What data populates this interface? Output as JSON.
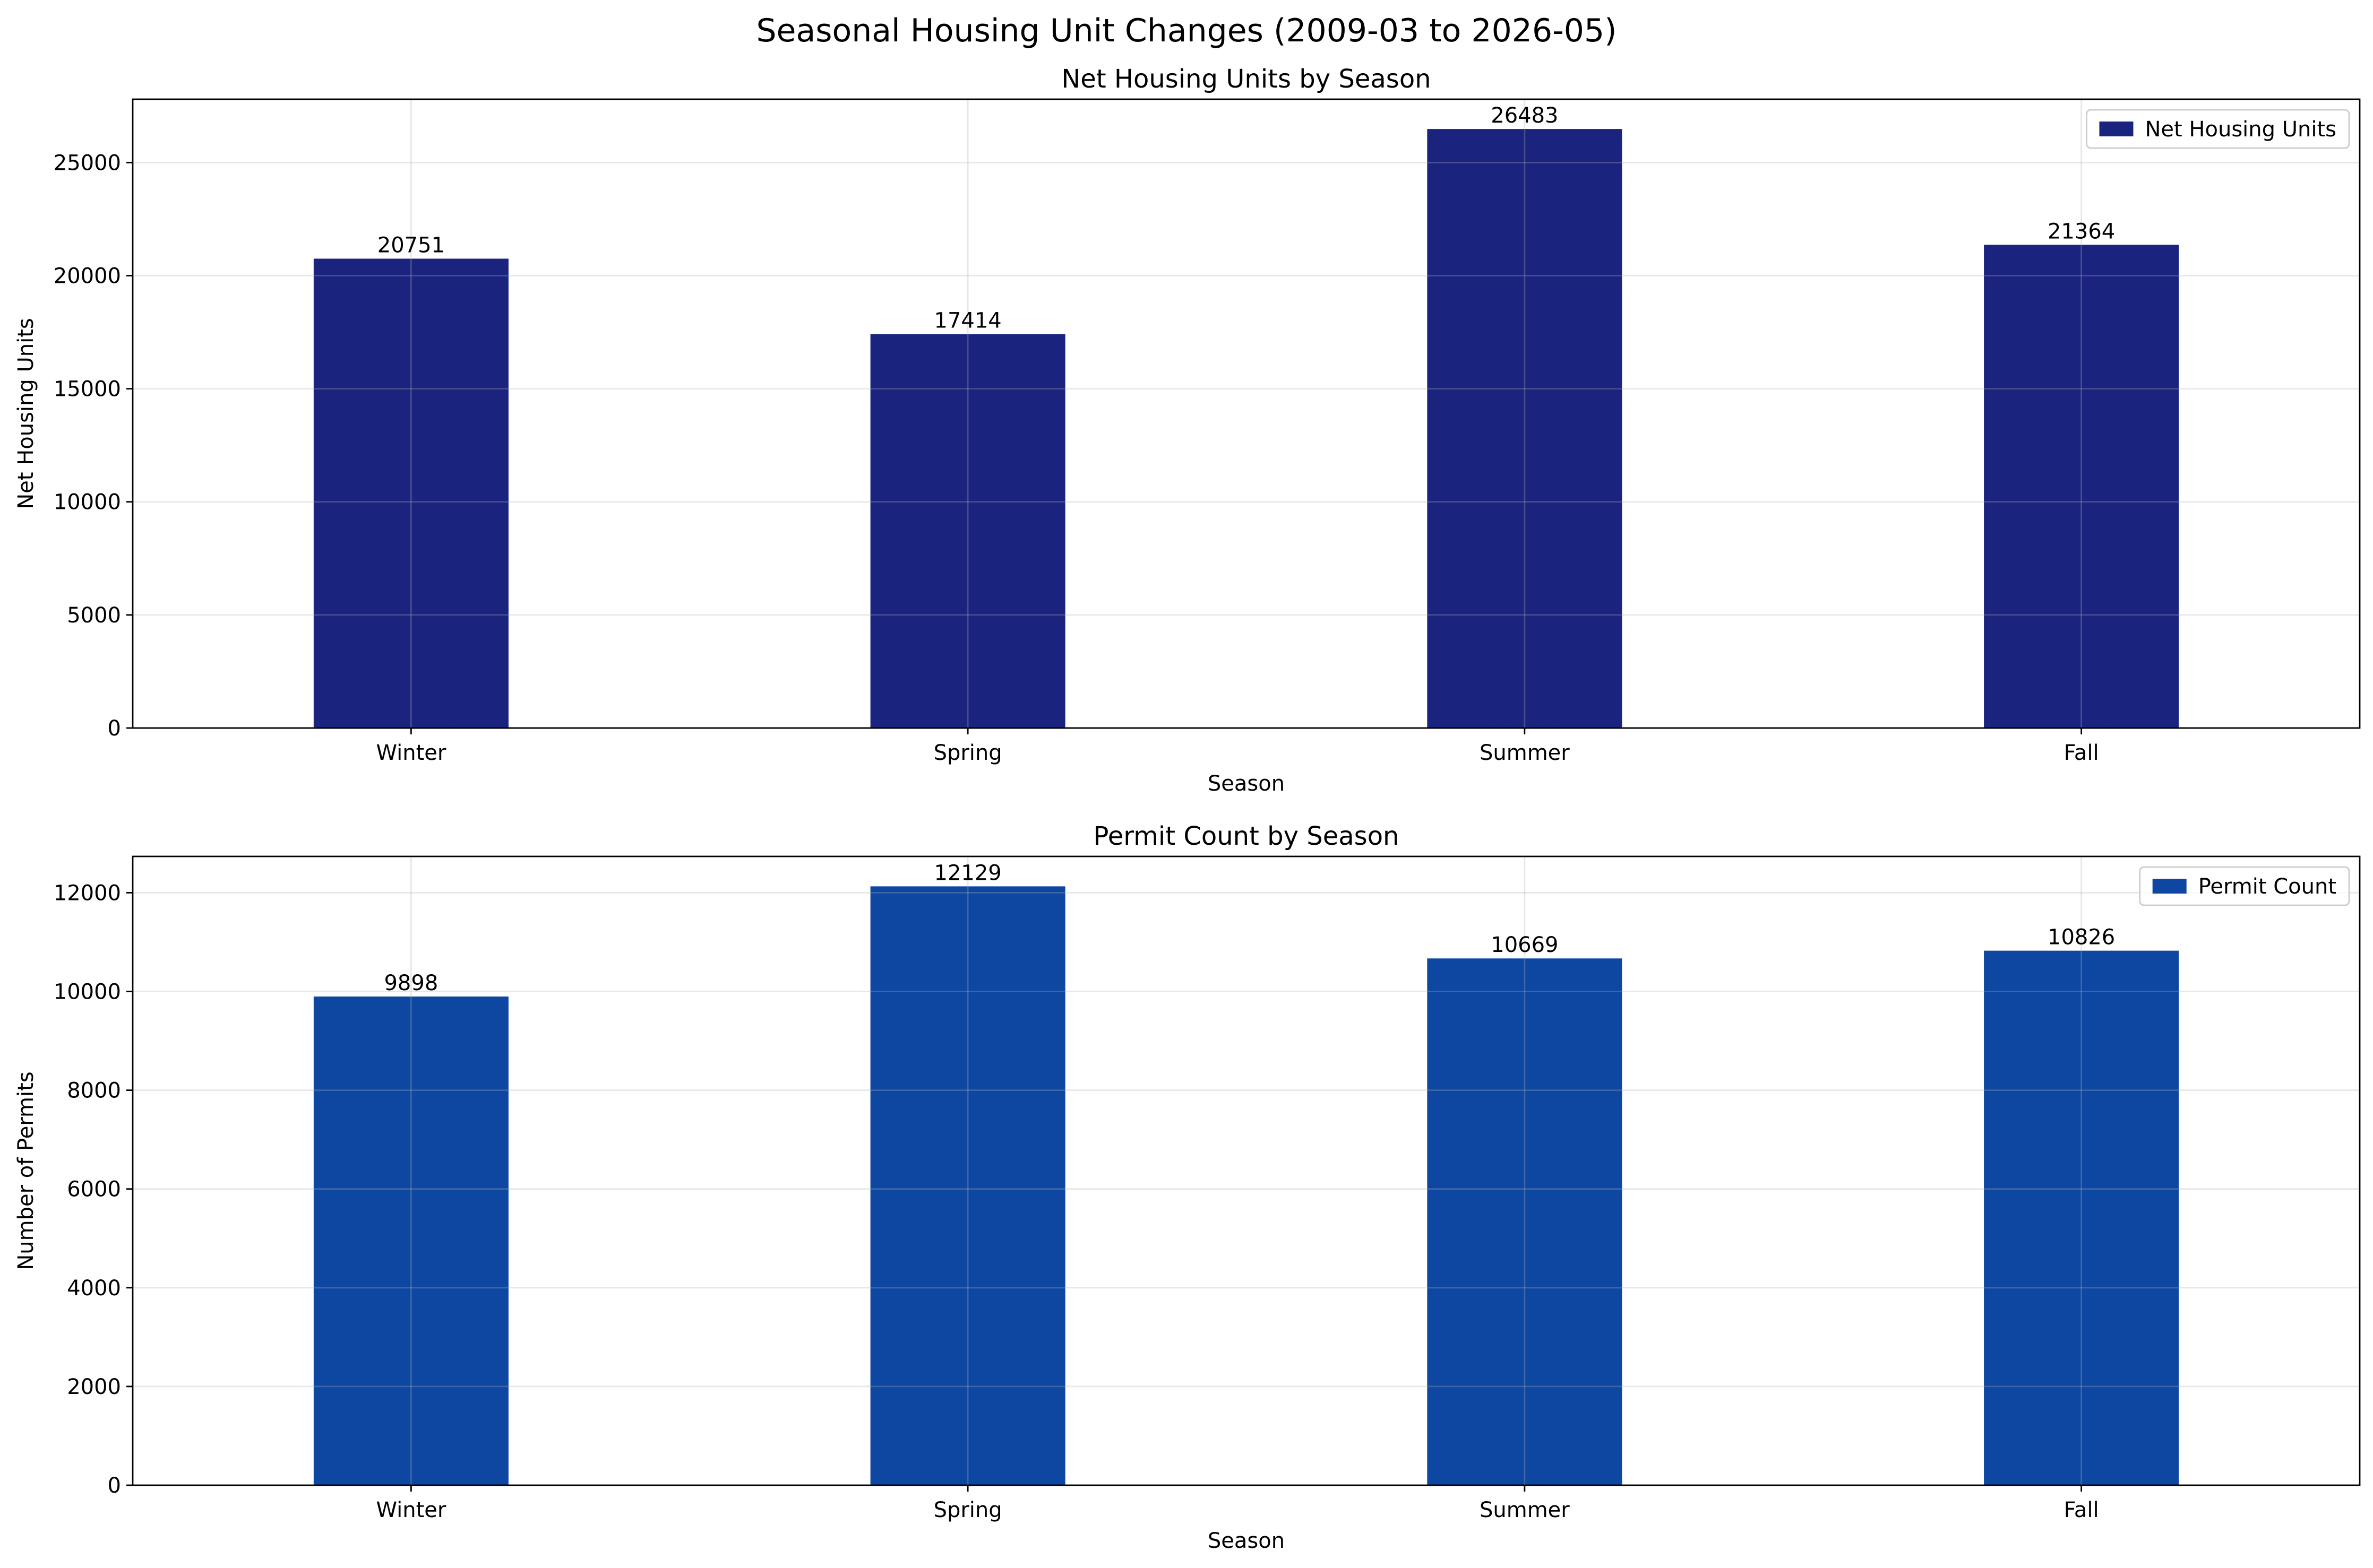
{
  "figure": {
    "suptitle": "Seasonal Housing Unit Changes (2009-03 to 2026-05)"
  },
  "chart_data": [
    {
      "type": "bar",
      "title": "Net Housing Units by Season",
      "xlabel": "Season",
      "ylabel": "Net Housing Units",
      "categories": [
        "Winter",
        "Spring",
        "Summer",
        "Fall"
      ],
      "series": [
        {
          "name": "Net Housing Units",
          "values": [
            20751,
            17414,
            26483,
            21364
          ],
          "color": "#1a237e"
        }
      ],
      "data_labels": [
        "20751",
        "17414",
        "26483",
        "21364"
      ],
      "ylim": [
        0,
        27800
      ],
      "yticks": [
        0,
        5000,
        10000,
        15000,
        20000,
        25000
      ],
      "grid": true,
      "legend": "upper right",
      "reference_line": 0
    },
    {
      "type": "bar",
      "title": "Permit Count by Season",
      "xlabel": "Season",
      "ylabel": "Number of Permits",
      "categories": [
        "Winter",
        "Spring",
        "Summer",
        "Fall"
      ],
      "series": [
        {
          "name": "Permit Count",
          "values": [
            9898,
            12129,
            10669,
            10826
          ],
          "color": "#0d47a1"
        }
      ],
      "data_labels": [
        "9898",
        "12129",
        "10669",
        "10826"
      ],
      "ylim": [
        0,
        12735
      ],
      "yticks": [
        0,
        2000,
        4000,
        6000,
        8000,
        10000,
        12000
      ],
      "grid": true,
      "legend": "upper right"
    }
  ]
}
